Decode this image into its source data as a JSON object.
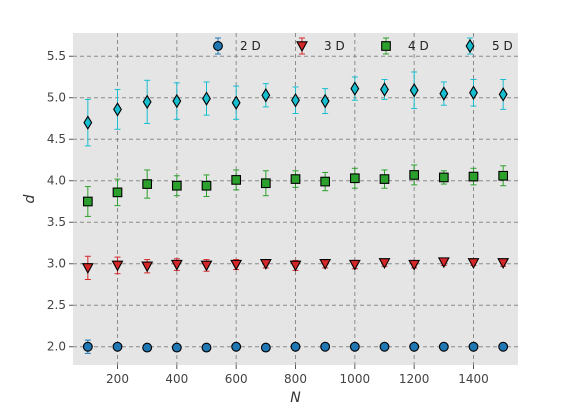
{
  "chart_data": {
    "type": "scatter",
    "xlabel": "N",
    "ylabel": "d",
    "xlim": [
      50,
      1550
    ],
    "ylim": [
      1.78,
      5.78
    ],
    "xticks": [
      200,
      400,
      600,
      800,
      1000,
      1200,
      1400
    ],
    "yticks": [
      2.0,
      2.5,
      3.0,
      3.5,
      4.0,
      4.5,
      5.0,
      5.5
    ],
    "xtick_labels": [
      "200",
      "400",
      "600",
      "800",
      "1000",
      "1200",
      "1400"
    ],
    "ytick_labels": [
      "2.0",
      "2.5",
      "3.0",
      "3.5",
      "4.0",
      "4.5",
      "5.0",
      "5.5"
    ],
    "grid": true,
    "legend_position": "top",
    "x": [
      100,
      200,
      300,
      400,
      500,
      600,
      700,
      800,
      900,
      1000,
      1100,
      1200,
      1300,
      1400,
      1500
    ],
    "series": [
      {
        "name": "2 D",
        "marker": "circle",
        "color": "#1f77b4",
        "errcolor": "#1f77b4",
        "values": [
          2.0,
          2.0,
          1.99,
          1.99,
          1.99,
          2.0,
          1.99,
          2.0,
          2.0,
          2.0,
          2.0,
          2.0,
          2.0,
          2.0,
          2.0
        ],
        "errors": [
          0.08,
          0.02,
          0.02,
          0.02,
          0.02,
          0.02,
          0.02,
          0.02,
          0.02,
          0.02,
          0.02,
          0.02,
          0.02,
          0.02,
          0.02
        ]
      },
      {
        "name": "3 D",
        "marker": "triangle-down",
        "color": "#d62728",
        "errcolor": "#d62728",
        "values": [
          2.95,
          2.98,
          2.97,
          2.99,
          2.98,
          2.99,
          3.0,
          2.98,
          3.0,
          2.99,
          3.01,
          2.99,
          3.02,
          3.01,
          3.01
        ],
        "errors": [
          0.14,
          0.1,
          0.08,
          0.07,
          0.07,
          0.06,
          0.05,
          0.06,
          0.05,
          0.05,
          0.04,
          0.04,
          0.04,
          0.03,
          0.04
        ]
      },
      {
        "name": "4 D",
        "marker": "square",
        "color": "#2ca02c",
        "errcolor": "#2ca02c",
        "values": [
          3.75,
          3.86,
          3.96,
          3.94,
          3.94,
          4.01,
          3.97,
          4.02,
          3.99,
          4.03,
          4.02,
          4.07,
          4.04,
          4.05,
          4.06
        ],
        "errors": [
          0.18,
          0.16,
          0.17,
          0.12,
          0.13,
          0.12,
          0.15,
          0.1,
          0.11,
          0.12,
          0.11,
          0.12,
          0.08,
          0.1,
          0.12
        ]
      },
      {
        "name": "5 D",
        "marker": "diamond",
        "color": "#17becf",
        "errcolor": "#17becf",
        "values": [
          4.7,
          4.86,
          4.95,
          4.96,
          4.99,
          4.94,
          5.03,
          4.97,
          4.96,
          5.11,
          5.1,
          5.09,
          5.05,
          5.06,
          5.04
        ],
        "errors": [
          0.28,
          0.24,
          0.26,
          0.22,
          0.2,
          0.2,
          0.14,
          0.16,
          0.15,
          0.14,
          0.12,
          0.22,
          0.14,
          0.16,
          0.18
        ]
      }
    ]
  }
}
